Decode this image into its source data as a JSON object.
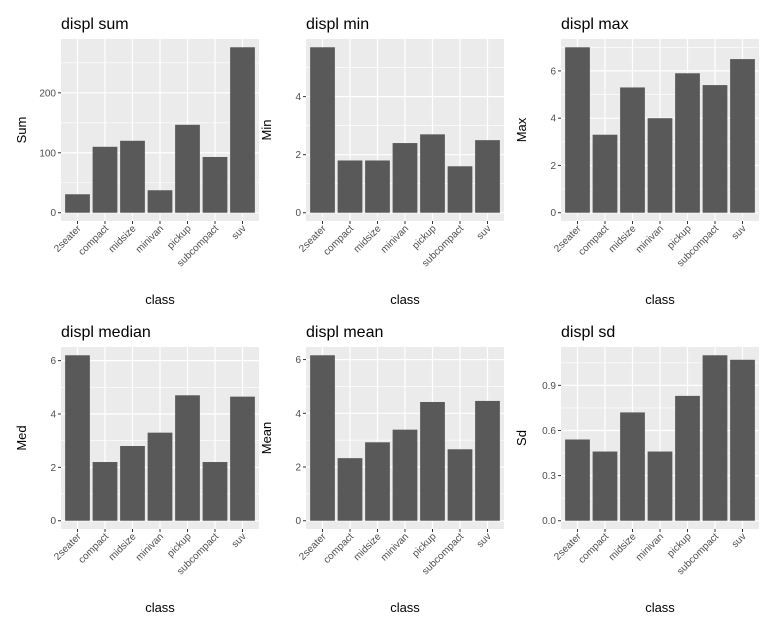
{
  "chart_data": [
    {
      "type": "bar",
      "title": "displ sum",
      "xlabel": "class",
      "ylabel": "Sum",
      "categories": [
        "2seater",
        "compact",
        "midsize",
        "minivan",
        "pickup",
        "subcompact",
        "suv"
      ],
      "values": [
        30.8,
        110.0,
        120.0,
        37.5,
        146.7,
        93.0,
        276.0
      ],
      "ylim": [
        -13.8,
        289.8
      ],
      "yticks": [
        0,
        100,
        200
      ],
      "ytick_labels": [
        "0",
        "100",
        "200"
      ],
      "grid": true,
      "bar_color": "#595959",
      "panel_color": "#ebebeb"
    },
    {
      "type": "bar",
      "title": "displ min",
      "xlabel": "class",
      "ylabel": "Min",
      "categories": [
        "2seater",
        "compact",
        "midsize",
        "minivan",
        "pickup",
        "subcompact",
        "suv"
      ],
      "values": [
        5.7,
        1.8,
        1.8,
        2.4,
        2.7,
        1.6,
        2.5
      ],
      "ylim": [
        -0.285,
        5.985
      ],
      "yticks": [
        0,
        2,
        4
      ],
      "ytick_labels": [
        "0",
        "2",
        "4"
      ],
      "grid": true,
      "bar_color": "#595959",
      "panel_color": "#ebebeb"
    },
    {
      "type": "bar",
      "title": "displ max",
      "xlabel": "class",
      "ylabel": "Max",
      "categories": [
        "2seater",
        "compact",
        "midsize",
        "minivan",
        "pickup",
        "subcompact",
        "suv"
      ],
      "values": [
        7.0,
        3.3,
        5.3,
        4.0,
        5.9,
        5.4,
        6.5
      ],
      "ylim": [
        -0.35,
        7.35
      ],
      "yticks": [
        0,
        2,
        4,
        6
      ],
      "ytick_labels": [
        "0",
        "2",
        "4",
        "6"
      ],
      "grid": true,
      "bar_color": "#595959",
      "panel_color": "#ebebeb"
    },
    {
      "type": "bar",
      "title": "displ median",
      "xlabel": "class",
      "ylabel": "Med",
      "categories": [
        "2seater",
        "compact",
        "midsize",
        "minivan",
        "pickup",
        "subcompact",
        "suv"
      ],
      "values": [
        6.2,
        2.2,
        2.8,
        3.3,
        4.7,
        2.2,
        4.65
      ],
      "ylim": [
        -0.31,
        6.51
      ],
      "yticks": [
        0,
        2,
        4,
        6
      ],
      "ytick_labels": [
        "0",
        "2",
        "4",
        "6"
      ],
      "grid": true,
      "bar_color": "#595959",
      "panel_color": "#ebebeb"
    },
    {
      "type": "bar",
      "title": "displ mean",
      "xlabel": "class",
      "ylabel": "Mean",
      "categories": [
        "2seater",
        "compact",
        "midsize",
        "minivan",
        "pickup",
        "subcompact",
        "suv"
      ],
      "values": [
        6.16,
        2.33,
        2.92,
        3.39,
        4.42,
        2.66,
        4.46
      ],
      "ylim": [
        -0.308,
        6.468
      ],
      "yticks": [
        0,
        2,
        4,
        6
      ],
      "ytick_labels": [
        "0",
        "2",
        "4",
        "6"
      ],
      "grid": true,
      "bar_color": "#595959",
      "panel_color": "#ebebeb"
    },
    {
      "type": "bar",
      "title": "displ sd",
      "xlabel": "class",
      "ylabel": "Sd",
      "categories": [
        "2seater",
        "compact",
        "midsize",
        "minivan",
        "pickup",
        "subcompact",
        "suv"
      ],
      "values": [
        0.54,
        0.46,
        0.72,
        0.46,
        0.83,
        1.1,
        1.07
      ],
      "ylim": [
        -0.055,
        1.155
      ],
      "yticks": [
        0.0,
        0.3,
        0.6,
        0.9
      ],
      "ytick_labels": [
        "0.0",
        "0.3",
        "0.6",
        "0.9"
      ],
      "grid": true,
      "bar_color": "#595959",
      "panel_color": "#ebebeb"
    }
  ]
}
